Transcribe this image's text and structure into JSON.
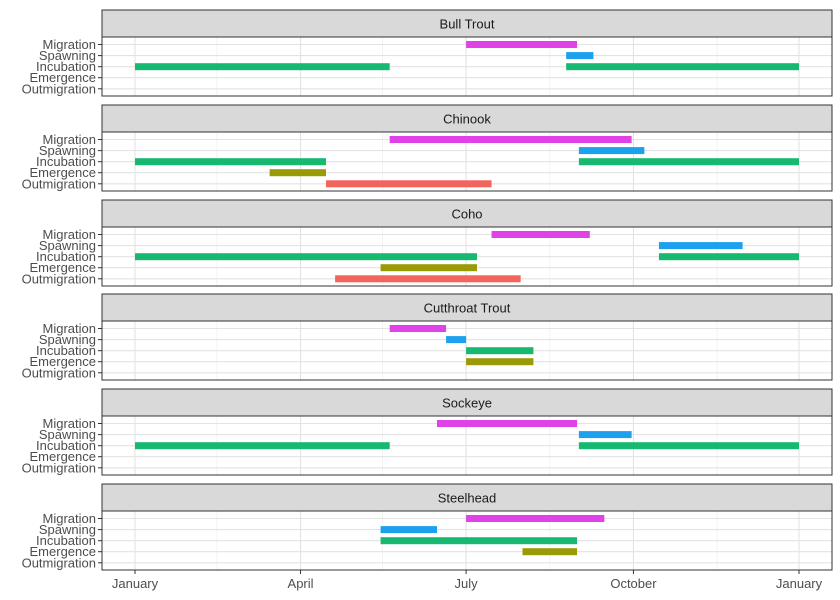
{
  "chart_data": {
    "type": "bar",
    "orientation": "horizontal-ranges",
    "facet_by": "species",
    "x_axis": {
      "tick_labels": [
        "January",
        "April",
        "July",
        "October",
        "January"
      ],
      "range": [
        "2020-01-01",
        "2020-12-31"
      ]
    },
    "stages": [
      "Migration",
      "Spawning",
      "Incubation",
      "Emergence",
      "Outmigration"
    ],
    "grid": true,
    "legend": "none",
    "stage_colors": {
      "Migration": "#E042E8",
      "Spawning": "#1DA1EE",
      "Incubation": "#17B970",
      "Emergence": "#999A06",
      "Outmigration": "#F2645C"
    },
    "panels": [
      {
        "title": "Bull Trout",
        "ranges": [
          {
            "stage": "Migration",
            "segments": [
              [
                "2020-07-01",
                "2020-08-31"
              ]
            ]
          },
          {
            "stage": "Spawning",
            "segments": [
              [
                "2020-08-25",
                "2020-09-09"
              ]
            ]
          },
          {
            "stage": "Incubation",
            "segments": [
              [
                "2020-01-01",
                "2020-05-20"
              ],
              [
                "2020-08-25",
                "2020-12-31"
              ]
            ]
          },
          {
            "stage": "Emergence",
            "segments": []
          },
          {
            "stage": "Outmigration",
            "segments": []
          }
        ]
      },
      {
        "title": "Chinook",
        "ranges": [
          {
            "stage": "Migration",
            "segments": [
              [
                "2020-05-20",
                "2020-09-30"
              ]
            ]
          },
          {
            "stage": "Spawning",
            "segments": [
              [
                "2020-09-01",
                "2020-10-07"
              ]
            ]
          },
          {
            "stage": "Incubation",
            "segments": [
              [
                "2020-01-01",
                "2020-04-15"
              ],
              [
                "2020-09-01",
                "2020-12-31"
              ]
            ]
          },
          {
            "stage": "Emergence",
            "segments": [
              [
                "2020-03-15",
                "2020-04-15"
              ]
            ]
          },
          {
            "stage": "Outmigration",
            "segments": [
              [
                "2020-04-15",
                "2020-07-15"
              ]
            ]
          }
        ]
      },
      {
        "title": "Coho",
        "ranges": [
          {
            "stage": "Migration",
            "segments": [
              [
                "2020-07-15",
                "2020-09-07"
              ]
            ]
          },
          {
            "stage": "Spawning",
            "segments": [
              [
                "2020-10-15",
                "2020-11-30"
              ]
            ]
          },
          {
            "stage": "Incubation",
            "segments": [
              [
                "2020-01-01",
                "2020-07-07"
              ],
              [
                "2020-10-15",
                "2020-12-31"
              ]
            ]
          },
          {
            "stage": "Emergence",
            "segments": [
              [
                "2020-05-15",
                "2020-07-07"
              ]
            ]
          },
          {
            "stage": "Outmigration",
            "segments": [
              [
                "2020-04-20",
                "2020-07-31"
              ]
            ]
          }
        ]
      },
      {
        "title": "Cutthroat Trout",
        "ranges": [
          {
            "stage": "Migration",
            "segments": [
              [
                "2020-05-20",
                "2020-06-20"
              ]
            ]
          },
          {
            "stage": "Spawning",
            "segments": [
              [
                "2020-06-20",
                "2020-07-01"
              ]
            ]
          },
          {
            "stage": "Incubation",
            "segments": [
              [
                "2020-07-01",
                "2020-08-07"
              ]
            ]
          },
          {
            "stage": "Emergence",
            "segments": [
              [
                "2020-07-01",
                "2020-08-07"
              ]
            ]
          },
          {
            "stage": "Outmigration",
            "segments": []
          }
        ]
      },
      {
        "title": "Sockeye",
        "ranges": [
          {
            "stage": "Migration",
            "segments": [
              [
                "2020-06-15",
                "2020-08-31"
              ]
            ]
          },
          {
            "stage": "Spawning",
            "segments": [
              [
                "2020-09-01",
                "2020-09-30"
              ]
            ]
          },
          {
            "stage": "Incubation",
            "segments": [
              [
                "2020-01-01",
                "2020-05-20"
              ],
              [
                "2020-09-01",
                "2020-12-31"
              ]
            ]
          },
          {
            "stage": "Emergence",
            "segments": []
          },
          {
            "stage": "Outmigration",
            "segments": []
          }
        ]
      },
      {
        "title": "Steelhead",
        "ranges": [
          {
            "stage": "Migration",
            "segments": [
              [
                "2020-07-01",
                "2020-09-15"
              ]
            ]
          },
          {
            "stage": "Spawning",
            "segments": [
              [
                "2020-05-15",
                "2020-06-15"
              ]
            ]
          },
          {
            "stage": "Incubation",
            "segments": [
              [
                "2020-05-15",
                "2020-08-31"
              ]
            ]
          },
          {
            "stage": "Emergence",
            "segments": [
              [
                "2020-08-01",
                "2020-08-31"
              ]
            ]
          },
          {
            "stage": "Outmigration",
            "segments": []
          }
        ]
      }
    ]
  }
}
